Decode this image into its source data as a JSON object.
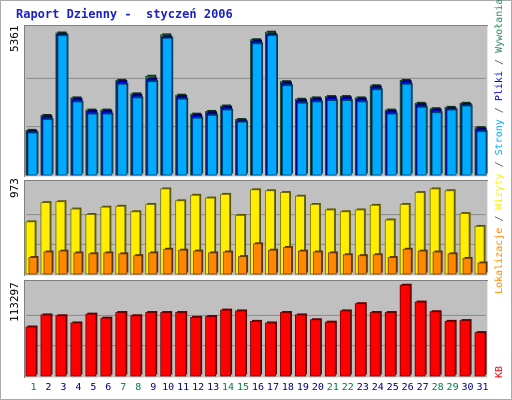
{
  "title": "Raport Dzienny -  styczeń 2006",
  "legend": {
    "wywolania": {
      "label": "Wywołania",
      "color": "#2e8b57"
    },
    "strony": {
      "label": "Strony",
      "color": "#00aaff"
    },
    "pliki": {
      "label": "Pliki",
      "color": "#0000ff"
    },
    "wizyty": {
      "label": "Wizyty",
      "color": "#ffee00"
    },
    "lokalizacje": {
      "label": "Lokalizacje",
      "color": "#ff8800"
    },
    "kb": {
      "label": "KB",
      "color": "#ff0000"
    },
    "separator": "/"
  },
  "chart_data": [
    {
      "type": "bar",
      "title": "Wywołania / Strony / Pliki",
      "ylim": [
        0,
        5361
      ],
      "ylabel_max": "5361",
      "grid": true,
      "categories": [
        "1",
        "2",
        "3",
        "4",
        "5",
        "6",
        "7",
        "8",
        "9",
        "10",
        "11",
        "12",
        "13",
        "14",
        "15",
        "16",
        "17",
        "18",
        "19",
        "20",
        "21",
        "22",
        "23",
        "24",
        "25",
        "26",
        "27",
        "28",
        "29",
        "30",
        "31"
      ],
      "series": [
        {
          "name": "Wywołania",
          "color": "#2e8b57",
          "values": [
            1650,
            2200,
            5250,
            2850,
            2400,
            2400,
            3500,
            3000,
            3650,
            5180,
            2950,
            2250,
            2350,
            2550,
            2050,
            5000,
            5280,
            3450,
            2800,
            2850,
            2900,
            2900,
            2850,
            3300,
            2400,
            3500,
            2650,
            2450,
            2500,
            2650,
            1750
          ]
        },
        {
          "name": "Strony",
          "color": "#00aaff",
          "values": [
            1550,
            2050,
            5150,
            2700,
            2250,
            2250,
            3350,
            2850,
            3450,
            5050,
            2800,
            2100,
            2200,
            2400,
            1950,
            4850,
            5150,
            3300,
            2650,
            2700,
            2750,
            2750,
            2700,
            3150,
            2250,
            3350,
            2500,
            2300,
            2400,
            2550,
            1600
          ]
        },
        {
          "name": "Pliki",
          "color": "#0000ff",
          "values": [
            1600,
            2150,
            5200,
            2800,
            2350,
            2350,
            3450,
            2950,
            3550,
            5100,
            2900,
            2200,
            2300,
            2500,
            2000,
            4950,
            5200,
            3400,
            2750,
            2800,
            2850,
            2850,
            2800,
            3250,
            2350,
            3450,
            2600,
            2400,
            2450,
            2600,
            1700
          ]
        }
      ]
    },
    {
      "type": "bar",
      "title": "Wizyty / Lokalizacje",
      "ylim": [
        0,
        973
      ],
      "ylabel_max": "973",
      "grid": true,
      "categories": [
        "1",
        "2",
        "3",
        "4",
        "5",
        "6",
        "7",
        "8",
        "9",
        "10",
        "11",
        "12",
        "13",
        "14",
        "15",
        "16",
        "17",
        "18",
        "19",
        "20",
        "21",
        "22",
        "23",
        "24",
        "25",
        "26",
        "27",
        "28",
        "29",
        "30",
        "31"
      ],
      "series": [
        {
          "name": "Wizyty",
          "color": "#ffee00",
          "values": [
            570,
            780,
            790,
            710,
            650,
            730,
            740,
            680,
            760,
            930,
            800,
            860,
            830,
            870,
            640,
            920,
            910,
            890,
            850,
            760,
            700,
            680,
            700,
            750,
            590,
            760,
            890,
            930,
            910,
            660,
            520
          ]
        },
        {
          "name": "Lokalizacje",
          "color": "#ff8800",
          "values": [
            180,
            240,
            250,
            230,
            220,
            230,
            220,
            200,
            230,
            270,
            260,
            250,
            230,
            240,
            190,
            330,
            260,
            290,
            250,
            240,
            230,
            210,
            200,
            210,
            180,
            270,
            250,
            240,
            220,
            170,
            120
          ]
        }
      ]
    },
    {
      "type": "bar",
      "title": "KB",
      "ylim": [
        0,
        113297
      ],
      "ylabel_max": "113297",
      "grid": true,
      "categories": [
        "1",
        "2",
        "3",
        "4",
        "5",
        "6",
        "7",
        "8",
        "9",
        "10",
        "11",
        "12",
        "13",
        "14",
        "15",
        "16",
        "17",
        "18",
        "19",
        "20",
        "21",
        "22",
        "23",
        "24",
        "25",
        "26",
        "27",
        "28",
        "29",
        "30",
        "31"
      ],
      "series": [
        {
          "name": "KB",
          "color": "#ff0000",
          "values": [
            61000,
            76000,
            75000,
            66000,
            77000,
            72000,
            79000,
            75000,
            79000,
            79000,
            79000,
            73000,
            74000,
            82000,
            81000,
            68000,
            66000,
            79000,
            76000,
            70000,
            67000,
            81000,
            90000,
            79000,
            79000,
            113000,
            92000,
            80000,
            68000,
            69000,
            54000
          ]
        }
      ]
    }
  ],
  "x_axis": {
    "labels": [
      "1",
      "2",
      "3",
      "4",
      "5",
      "6",
      "7",
      "8",
      "9",
      "10",
      "11",
      "12",
      "13",
      "14",
      "15",
      "16",
      "17",
      "18",
      "19",
      "20",
      "21",
      "22",
      "23",
      "24",
      "25",
      "26",
      "27",
      "28",
      "29",
      "30",
      "31"
    ],
    "weekend_days": [
      1,
      7,
      8,
      14,
      15,
      21,
      22,
      28,
      29
    ],
    "weekend_color": "#008040",
    "weekday_color": "#000080"
  }
}
